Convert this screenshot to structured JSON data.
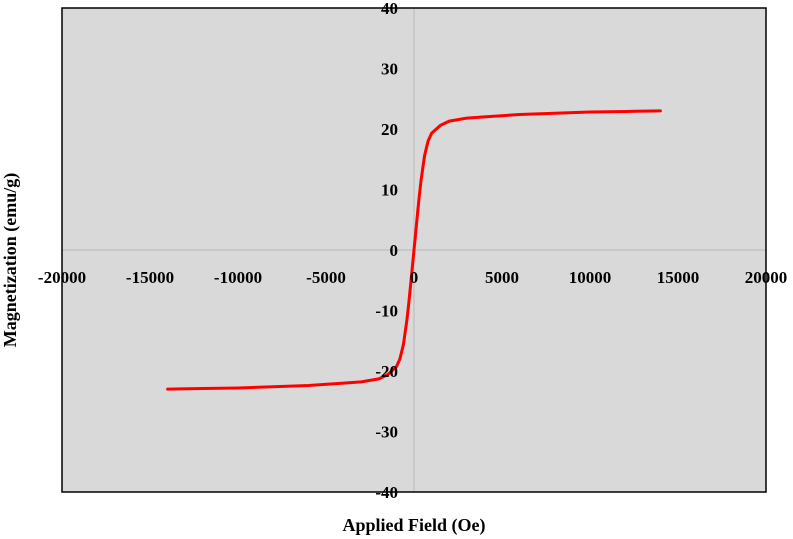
{
  "chart_data": {
    "type": "line",
    "title": "",
    "xlabel": "Applied Field (Oe)",
    "ylabel": "Magnetization (emu/g)",
    "xlim": [
      -20000,
      20000
    ],
    "ylim": [
      -40,
      40
    ],
    "xticks": [
      -20000,
      -15000,
      -10000,
      -5000,
      0,
      5000,
      10000,
      15000,
      20000
    ],
    "xtick_labels": [
      "-20000",
      "-15000",
      "-10000",
      "-5000",
      "0",
      "5000",
      "10000",
      "15000",
      "20000"
    ],
    "yticks": [
      -40,
      -30,
      -20,
      -10,
      0,
      10,
      20,
      30,
      40
    ],
    "ytick_labels": [
      "-40",
      "-30",
      "-20",
      "-10",
      "0",
      "10",
      "20",
      "30",
      "40"
    ],
    "grid": false,
    "legend": "none",
    "colors": {
      "plot_background": "#d9d9d9",
      "axis_line": "#bfbfbf",
      "frame": "#000000",
      "series": "#ff0000"
    },
    "series": [
      {
        "name": "",
        "x": [
          -14000,
          -12000,
          -10000,
          -8000,
          -6000,
          -4000,
          -3000,
          -2000,
          -1500,
          -1000,
          -800,
          -600,
          -400,
          -300,
          -200,
          -100,
          0,
          100,
          200,
          300,
          400,
          600,
          800,
          1000,
          1500,
          2000,
          3000,
          4000,
          6000,
          8000,
          10000,
          12000,
          14000
        ],
        "y": [
          -23.0,
          -22.9,
          -22.8,
          -22.6,
          -22.4,
          -22.0,
          -21.8,
          -21.3,
          -20.6,
          -19.3,
          -18.0,
          -15.6,
          -11.5,
          -8.9,
          -6.0,
          -3.0,
          0,
          3.0,
          6.0,
          8.9,
          11.5,
          15.6,
          18.0,
          19.3,
          20.6,
          21.3,
          21.8,
          22.0,
          22.4,
          22.6,
          22.8,
          22.9,
          23.0
        ]
      }
    ]
  }
}
